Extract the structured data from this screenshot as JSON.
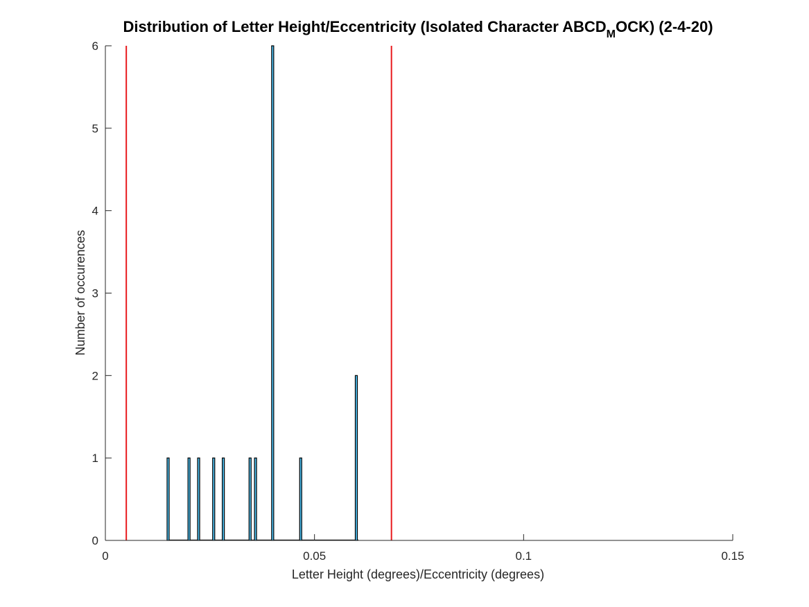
{
  "chart_data": {
    "type": "bar",
    "title": {
      "before_subscript": "Distribution of Letter Height/Eccentricity (Isolated Character ABCD",
      "subscript": "M",
      "after_subscript": "OCK) (2-4-20)"
    },
    "xlabel": "Letter Height (degrees)/Eccentricity (degrees)",
    "ylabel": "Number of occurences",
    "xlim": [
      0,
      0.15
    ],
    "ylim": [
      0,
      6
    ],
    "xticks": [
      0,
      0.05,
      0.1,
      0.15
    ],
    "xtick_labels": [
      "0",
      "0.05",
      "0.1",
      "0.15"
    ],
    "yticks": [
      0,
      1,
      2,
      3,
      4,
      5,
      6
    ],
    "ytick_labels": [
      "0",
      "1",
      "2",
      "3",
      "4",
      "5",
      "6"
    ],
    "bin_width": 0.0005,
    "bars": [
      {
        "x": 0.015,
        "count": 1
      },
      {
        "x": 0.02,
        "count": 1
      },
      {
        "x": 0.0223,
        "count": 1
      },
      {
        "x": 0.0259,
        "count": 1
      },
      {
        "x": 0.0282,
        "count": 1
      },
      {
        "x": 0.0346,
        "count": 1
      },
      {
        "x": 0.0359,
        "count": 1
      },
      {
        "x": 0.04,
        "count": 6
      },
      {
        "x": 0.0467,
        "count": 1
      },
      {
        "x": 0.06,
        "count": 2
      }
    ],
    "baseline_range": [
      0.015,
      0.0605
    ],
    "reference_lines": [
      0.005,
      0.0684
    ],
    "colors": {
      "bar_fill": "#4DBEEE",
      "bar_edge": "#000000",
      "reference_line": "#e8191c",
      "axis": "#262626"
    },
    "grid": false,
    "legend": "none"
  }
}
